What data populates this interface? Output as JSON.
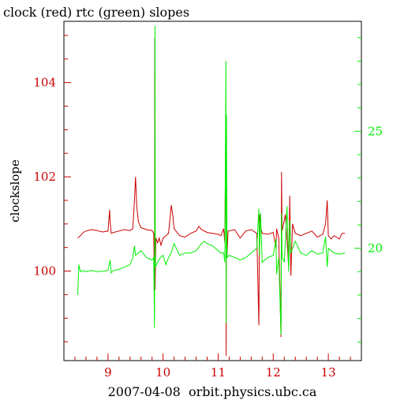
{
  "chart_data": {
    "type": "line",
    "title": "clock (red) rtc (green) slopes",
    "xlabel": "2007-04-08  orbit.physics.ubc.ca",
    "ylabel": "clockslope",
    "xlim": [
      8.2,
      13.6
    ],
    "ylim_left": [
      98.1,
      105.3
    ],
    "ylim_right": [
      15.2,
      29.7
    ],
    "x_ticks": [
      9,
      10,
      11,
      12,
      13
    ],
    "x_tick_labels": [
      "9",
      "10",
      "11",
      "12",
      "13"
    ],
    "left_ticks": [
      100,
      102,
      104
    ],
    "left_tick_labels": [
      "100",
      "102",
      "104"
    ],
    "right_ticks": [
      20,
      25
    ],
    "right_tick_labels": [
      "20",
      "25"
    ],
    "series": [
      {
        "name": "clock",
        "axis": "left",
        "color": "#cc0000",
        "points": [
          [
            8.45,
            100.7
          ],
          [
            8.5,
            100.75
          ],
          [
            8.55,
            100.82
          ],
          [
            8.6,
            100.85
          ],
          [
            8.7,
            100.88
          ],
          [
            8.8,
            100.86
          ],
          [
            8.9,
            100.83
          ],
          [
            9.0,
            100.85
          ],
          [
            9.03,
            101.3
          ],
          [
            9.04,
            101.05
          ],
          [
            9.06,
            100.8
          ],
          [
            9.1,
            100.82
          ],
          [
            9.2,
            100.85
          ],
          [
            9.3,
            100.88
          ],
          [
            9.4,
            100.86
          ],
          [
            9.45,
            100.9
          ],
          [
            9.48,
            101.5
          ],
          [
            9.5,
            102.0
          ],
          [
            9.52,
            101.4
          ],
          [
            9.55,
            101.05
          ],
          [
            9.6,
            100.92
          ],
          [
            9.7,
            100.88
          ],
          [
            9.8,
            100.86
          ],
          [
            9.83,
            100.8
          ],
          [
            9.845,
            99.6
          ],
          [
            9.85,
            104.95
          ],
          [
            9.855,
            99.6
          ],
          [
            9.87,
            100.7
          ],
          [
            9.9,
            100.6
          ],
          [
            9.93,
            100.7
          ],
          [
            9.96,
            100.55
          ],
          [
            10.0,
            100.7
          ],
          [
            10.05,
            100.75
          ],
          [
            10.1,
            100.8
          ],
          [
            10.15,
            101.4
          ],
          [
            10.18,
            101.15
          ],
          [
            10.2,
            100.9
          ],
          [
            10.3,
            100.75
          ],
          [
            10.4,
            100.72
          ],
          [
            10.5,
            100.8
          ],
          [
            10.6,
            100.85
          ],
          [
            10.65,
            100.95
          ],
          [
            10.7,
            100.88
          ],
          [
            10.8,
            100.82
          ],
          [
            10.9,
            100.8
          ],
          [
            11.0,
            100.78
          ],
          [
            11.05,
            100.75
          ],
          [
            11.1,
            100.9
          ],
          [
            11.12,
            100.6
          ],
          [
            11.14,
            103.3
          ],
          [
            11.145,
            98.2
          ],
          [
            11.15,
            102.0
          ],
          [
            11.16,
            100.3
          ],
          [
            11.18,
            100.85
          ],
          [
            11.3,
            100.88
          ],
          [
            11.4,
            100.7
          ],
          [
            11.5,
            100.85
          ],
          [
            11.6,
            100.88
          ],
          [
            11.7,
            100.8
          ],
          [
            11.74,
            98.85
          ],
          [
            11.75,
            101.2
          ],
          [
            11.78,
            100.9
          ],
          [
            11.8,
            100.8
          ],
          [
            11.9,
            100.78
          ],
          [
            12.0,
            100.82
          ],
          [
            12.05,
            100.5
          ],
          [
            12.06,
            100.9
          ],
          [
            12.1,
            100.7
          ],
          [
            12.14,
            98.6
          ],
          [
            12.15,
            102.1
          ],
          [
            12.16,
            100.85
          ],
          [
            12.22,
            101.2
          ],
          [
            12.28,
            100.1
          ],
          [
            12.3,
            101.6
          ],
          [
            12.32,
            99.9
          ],
          [
            12.35,
            101.0
          ],
          [
            12.4,
            100.8
          ],
          [
            12.5,
            100.75
          ],
          [
            12.6,
            100.8
          ],
          [
            12.7,
            100.85
          ],
          [
            12.8,
            100.72
          ],
          [
            12.9,
            100.78
          ],
          [
            12.95,
            101.0
          ],
          [
            12.98,
            101.5
          ],
          [
            13.0,
            100.75
          ],
          [
            13.05,
            100.68
          ],
          [
            13.1,
            100.75
          ],
          [
            13.15,
            100.72
          ],
          [
            13.2,
            100.68
          ],
          [
            13.25,
            100.8
          ],
          [
            13.3,
            100.8
          ]
        ]
      },
      {
        "name": "rtc",
        "axis": "right",
        "color": "#00ee00",
        "points": [
          [
            8.45,
            18.0
          ],
          [
            8.47,
            19.3
          ],
          [
            8.5,
            19.0
          ],
          [
            8.55,
            19.05
          ],
          [
            8.6,
            19.0
          ],
          [
            8.7,
            19.05
          ],
          [
            8.8,
            19.0
          ],
          [
            8.9,
            19.02
          ],
          [
            9.0,
            19.05
          ],
          [
            9.04,
            19.5
          ],
          [
            9.06,
            18.95
          ],
          [
            9.1,
            19.05
          ],
          [
            9.2,
            19.1
          ],
          [
            9.3,
            19.2
          ],
          [
            9.4,
            19.3
          ],
          [
            9.45,
            19.6
          ],
          [
            9.48,
            20.1
          ],
          [
            9.5,
            19.7
          ],
          [
            9.55,
            19.8
          ],
          [
            9.6,
            19.9
          ],
          [
            9.7,
            19.6
          ],
          [
            9.8,
            19.5
          ],
          [
            9.83,
            19.6
          ],
          [
            9.845,
            16.6
          ],
          [
            9.85,
            22.0
          ],
          [
            9.855,
            29.5
          ],
          [
            9.86,
            19.2
          ],
          [
            9.9,
            19.4
          ],
          [
            9.95,
            19.6
          ],
          [
            10.0,
            19.7
          ],
          [
            10.05,
            19.3
          ],
          [
            10.1,
            19.6
          ],
          [
            10.15,
            19.8
          ],
          [
            10.2,
            20.2
          ],
          [
            10.3,
            19.7
          ],
          [
            10.4,
            19.8
          ],
          [
            10.5,
            19.8
          ],
          [
            10.6,
            19.9
          ],
          [
            10.7,
            20.2
          ],
          [
            10.75,
            20.3
          ],
          [
            10.8,
            20.2
          ],
          [
            10.9,
            20.1
          ],
          [
            11.0,
            19.9
          ],
          [
            11.05,
            19.8
          ],
          [
            11.1,
            19.8
          ],
          [
            11.12,
            19.4
          ],
          [
            11.14,
            28.0
          ],
          [
            11.145,
            16.8
          ],
          [
            11.15,
            25.7
          ],
          [
            11.16,
            19.6
          ],
          [
            11.2,
            19.7
          ],
          [
            11.3,
            19.6
          ],
          [
            11.4,
            19.5
          ],
          [
            11.5,
            19.6
          ],
          [
            11.6,
            19.8
          ],
          [
            11.7,
            20.0
          ],
          [
            11.74,
            21.7
          ],
          [
            11.75,
            19.7
          ],
          [
            11.77,
            21.5
          ],
          [
            11.8,
            19.4
          ],
          [
            11.9,
            19.6
          ],
          [
            12.0,
            19.7
          ],
          [
            12.05,
            20.4
          ],
          [
            12.06,
            18.9
          ],
          [
            12.1,
            19.6
          ],
          [
            12.14,
            16.3
          ],
          [
            12.15,
            21.5
          ],
          [
            12.16,
            19.6
          ],
          [
            12.2,
            19.4
          ],
          [
            12.25,
            21.8
          ],
          [
            12.28,
            19.0
          ],
          [
            12.3,
            21.2
          ],
          [
            12.32,
            19.8
          ],
          [
            12.4,
            20.3
          ],
          [
            12.5,
            19.8
          ],
          [
            12.6,
            19.7
          ],
          [
            12.7,
            19.9
          ],
          [
            12.8,
            19.75
          ],
          [
            12.9,
            19.8
          ],
          [
            12.95,
            20.5
          ],
          [
            12.98,
            19.2
          ],
          [
            13.0,
            20.0
          ],
          [
            13.1,
            19.8
          ],
          [
            13.2,
            19.75
          ],
          [
            13.3,
            19.8
          ]
        ]
      }
    ]
  }
}
